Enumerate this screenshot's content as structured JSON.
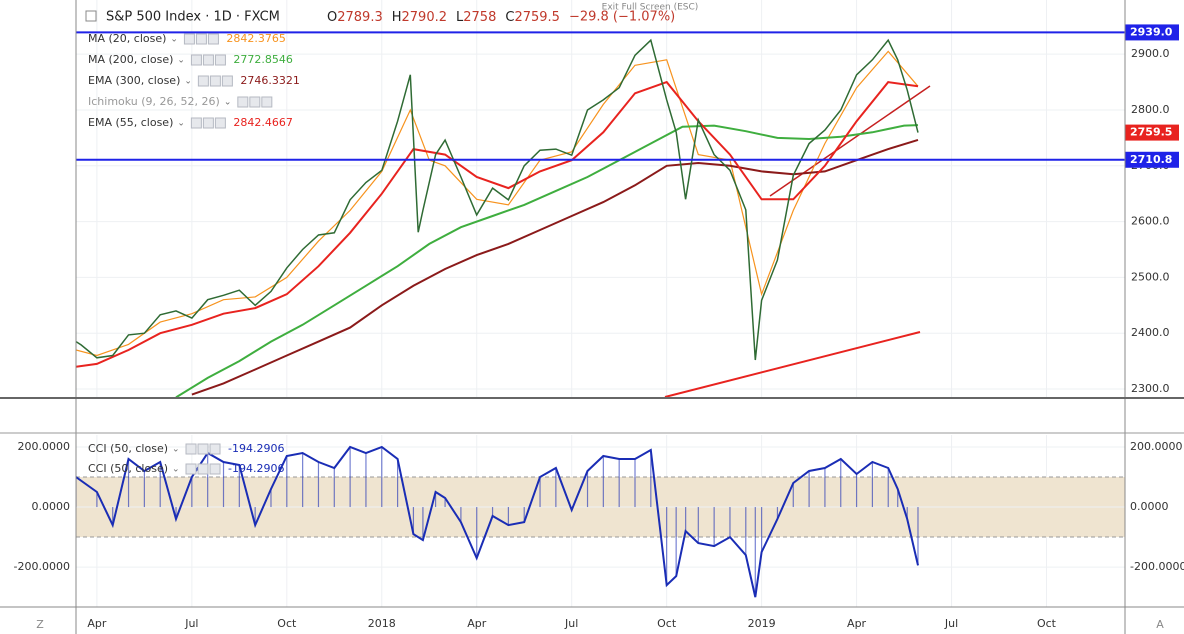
{
  "header": {
    "exit_full_screen": "Exit Full Screen (ESC)",
    "axis_buttons": [
      "Z",
      "A"
    ]
  },
  "chart_data": [
    {
      "type": "line",
      "title": "S&P 500 Index · 1D · FXCM",
      "ohlc": [
        {
          "label": "O",
          "value": 2789.3
        },
        {
          "label": "H",
          "value": 2790.2
        },
        {
          "label": "L",
          "value": 2758.0
        },
        {
          "label": "C",
          "value": 2759.5
        }
      ],
      "change": {
        "value": -29.8,
        "label": "−29.8 (−1.07%)"
      },
      "xlim": [
        2.34,
        35.48
      ],
      "xticks": [
        {
          "value": 3,
          "label": "Apr"
        },
        {
          "value": 6,
          "label": "Jul"
        },
        {
          "value": 9,
          "label": "Oct"
        },
        {
          "value": 12,
          "label": "2018"
        },
        {
          "value": 15,
          "label": "Apr"
        },
        {
          "value": 18,
          "label": "Jul"
        },
        {
          "value": 21,
          "label": "Oct"
        },
        {
          "value": 24,
          "label": "2019"
        },
        {
          "value": 27,
          "label": "Apr"
        },
        {
          "value": 30,
          "label": "Jul"
        },
        {
          "value": 33,
          "label": "Oct"
        }
      ],
      "ylim": [
        2285.7,
        2997.1
      ],
      "yticks": [
        {
          "value": 2300,
          "label": "2300.0"
        },
        {
          "value": 2400,
          "label": "2400.0"
        },
        {
          "value": 2500,
          "label": "2500.0"
        },
        {
          "value": 2600,
          "label": "2600.0"
        },
        {
          "value": 2700,
          "label": "2700.0"
        },
        {
          "value": 2800,
          "label": "2800.0"
        },
        {
          "value": 2900,
          "label": "2900.0"
        }
      ],
      "grid": true,
      "price": {
        "color": "#2f6b34",
        "x": [
          2.34,
          2.5,
          3,
          3.5,
          4,
          4.5,
          5,
          5.5,
          6,
          6.5,
          7,
          7.5,
          8,
          8.5,
          9,
          9.5,
          10,
          10.5,
          11,
          11.5,
          12,
          12.5,
          12.9,
          13.15,
          13.3,
          13.7,
          14,
          14.5,
          15,
          15.5,
          16,
          16.5,
          17,
          17.5,
          18,
          18.5,
          19,
          19.5,
          20,
          20.5,
          21,
          21.3,
          21.6,
          22,
          22.5,
          23,
          23.5,
          23.8,
          24,
          24.5,
          25,
          25.5,
          26,
          26.5,
          27,
          27.5,
          28,
          28.3,
          28.6,
          28.94
        ],
        "values": [
          2385,
          2379,
          2356,
          2360,
          2397,
          2400,
          2433,
          2440,
          2427,
          2460,
          2468,
          2477,
          2450,
          2475,
          2517,
          2550,
          2576,
          2580,
          2639,
          2670,
          2692,
          2780,
          2863,
          2581,
          2620,
          2720,
          2746,
          2680,
          2612,
          2660,
          2639,
          2700,
          2728,
          2730,
          2719,
          2800,
          2818,
          2840,
          2898,
          2925,
          2818,
          2760,
          2640,
          2782,
          2720,
          2692,
          2621,
          2352,
          2459,
          2531,
          2683,
          2740,
          2764,
          2800,
          2863,
          2890,
          2925,
          2890,
          2836,
          2759.5
        ]
      },
      "series": [
        {
          "name": "MA (20, close)",
          "color": "#f7931e",
          "x": [
            2.34,
            3,
            4,
            5,
            6,
            7,
            8,
            9,
            10,
            11,
            12,
            12.9,
            13.5,
            14,
            15,
            16,
            17,
            18,
            19,
            20,
            21,
            22,
            23,
            24,
            25,
            26,
            27,
            28,
            28.94
          ],
          "values": [
            2370,
            2360,
            2380,
            2420,
            2435,
            2460,
            2465,
            2500,
            2565,
            2620,
            2690,
            2800,
            2710,
            2700,
            2640,
            2630,
            2710,
            2725,
            2810,
            2880,
            2890,
            2720,
            2710,
            2470,
            2620,
            2740,
            2840,
            2905,
            2842.3765
          ]
        },
        {
          "name": "MA (200, close)",
          "color": "#3fae3f",
          "x": [
            5.5,
            6.5,
            7.5,
            8.5,
            9.5,
            10.5,
            11.5,
            12.5,
            13.5,
            14.5,
            15.5,
            16.5,
            17.5,
            18.5,
            19.5,
            20.5,
            21.5,
            22.5,
            23.5,
            24.5,
            25.5,
            26.5,
            27.5,
            28.5,
            28.94
          ],
          "values": [
            2285,
            2320,
            2350,
            2385,
            2415,
            2450,
            2485,
            2520,
            2560,
            2590,
            2610,
            2630,
            2655,
            2680,
            2710,
            2740,
            2770,
            2772,
            2762,
            2750,
            2748,
            2752,
            2760,
            2772,
            2772.8546
          ]
        },
        {
          "name": "EMA (300, close)",
          "color": "#8b1a1a",
          "x": [
            6,
            7,
            8,
            9,
            10,
            11,
            12,
            13,
            14,
            15,
            16,
            17,
            18,
            19,
            20,
            21,
            22,
            23,
            24,
            25,
            26,
            27,
            28,
            28.94
          ],
          "values": [
            2290,
            2310,
            2335,
            2360,
            2385,
            2410,
            2450,
            2485,
            2515,
            2540,
            2560,
            2585,
            2610,
            2635,
            2665,
            2700,
            2705,
            2700,
            2690,
            2685,
            2690,
            2710,
            2730,
            2746.3321
          ]
        },
        {
          "name": "EMA (55, close)",
          "color": "#e8231f",
          "x": [
            2.34,
            3,
            4,
            5,
            6,
            7,
            8,
            9,
            10,
            11,
            12,
            13,
            14,
            15,
            16,
            17,
            18,
            19,
            20,
            21,
            22,
            23,
            24,
            25,
            26,
            27,
            28,
            28.94
          ],
          "values": [
            2340,
            2345,
            2370,
            2400,
            2415,
            2435,
            2445,
            2470,
            2520,
            2580,
            2650,
            2730,
            2720,
            2680,
            2660,
            2690,
            2710,
            2760,
            2830,
            2850,
            2780,
            2720,
            2640,
            2640,
            2700,
            2780,
            2850,
            2842.4667
          ]
        }
      ],
      "hidden_indicators": [
        "Ichimoku (9, 26, 52, 26)"
      ],
      "hlines": [
        {
          "value": 2939.0,
          "label": "2939.0",
          "color": "#1f22e8"
        },
        {
          "value": 2710.8,
          "label": "2710.8",
          "color": "#1f22e8"
        }
      ],
      "last_price": {
        "value": 2759.5,
        "label": "2759.5",
        "color": "#e8231f"
      }
    },
    {
      "type": "line",
      "ylim": [
        -333,
        240
      ],
      "yticks": [
        {
          "value": 200,
          "label": "200.0000"
        },
        {
          "value": 0,
          "label": "0.0000"
        },
        {
          "value": -200,
          "label": "-200.0000"
        }
      ],
      "band": [
        -100,
        100
      ],
      "band_color": "#efe4d0",
      "series": [
        {
          "name": "CCI (50, close)",
          "color": "#1a2db5",
          "x": [
            2.34,
            3,
            3.5,
            4,
            4.5,
            5,
            5.5,
            6,
            6.5,
            7,
            7.5,
            8,
            8.5,
            9,
            9.5,
            10,
            10.5,
            11,
            11.5,
            12,
            12.5,
            13,
            13.3,
            13.7,
            14,
            14.5,
            15,
            15.5,
            16,
            16.5,
            17,
            17.5,
            18,
            18.5,
            19,
            19.5,
            20,
            20.5,
            21,
            21.3,
            21.6,
            22,
            22.5,
            23,
            23.5,
            23.8,
            24,
            24.5,
            25,
            25.5,
            26,
            26.5,
            27,
            27.5,
            28,
            28.3,
            28.6,
            28.94
          ],
          "values": [
            100,
            50,
            -60,
            160,
            120,
            150,
            -40,
            100,
            180,
            150,
            140,
            -60,
            60,
            170,
            180,
            150,
            130,
            200,
            180,
            200,
            160,
            -90,
            -110,
            50,
            30,
            -50,
            -170,
            -30,
            -60,
            -50,
            100,
            130,
            -10,
            120,
            170,
            160,
            160,
            190,
            -260,
            -230,
            -80,
            -120,
            -130,
            -100,
            -160,
            -300,
            -150,
            -40,
            80,
            120,
            130,
            160,
            110,
            150,
            130,
            60,
            -40,
            -194.2906
          ]
        }
      ]
    }
  ]
}
